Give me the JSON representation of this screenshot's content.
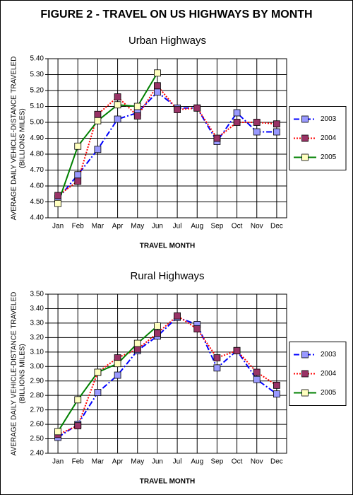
{
  "title": "FIGURE 2 - TRAVEL ON US HIGHWAYS BY MONTH",
  "chart_data": [
    {
      "type": "line",
      "title": "Urban Highways",
      "xlabel": "TRAVEL MONTH",
      "ylabel": [
        "AVERAGE DAILY VEHICLE-DISTANCE TRAVELED",
        "(BILLIONS MILES)"
      ],
      "categories": [
        "Jan",
        "Feb",
        "Mar",
        "Apr",
        "May",
        "Jun",
        "Jul",
        "Aug",
        "Sep",
        "Oct",
        "Nov",
        "Dec"
      ],
      "ylim": [
        4.4,
        5.4
      ],
      "yticks": [
        {
          "value": 4.4,
          "label": "4.40"
        },
        {
          "value": 4.5,
          "label": "4.50"
        },
        {
          "value": 4.6,
          "label": "4.60"
        },
        {
          "value": 4.7,
          "label": "4.70"
        },
        {
          "value": 4.8,
          "label": "4.80"
        },
        {
          "value": 4.9,
          "label": "4.90"
        },
        {
          "value": 5.0,
          "label": "5.00"
        },
        {
          "value": 5.1,
          "label": "5.10"
        },
        {
          "value": 5.2,
          "label": "5.20"
        },
        {
          "value": 5.3,
          "label": "5.30"
        },
        {
          "value": 5.4,
          "label": "5.40"
        }
      ],
      "grid": true,
      "legend": "right",
      "series": [
        {
          "name": "2003",
          "color": "#0000ff",
          "marker_color": "#9999ff",
          "line_style": "dashdot",
          "values": [
            4.52,
            4.67,
            4.83,
            5.02,
            5.06,
            5.19,
            5.09,
            5.09,
            4.88,
            5.06,
            4.94,
            4.94
          ]
        },
        {
          "name": "2004",
          "color": "#ff0000",
          "marker_color": "#993366",
          "line_style": "dotted",
          "values": [
            4.54,
            4.63,
            5.05,
            5.16,
            5.04,
            5.23,
            5.08,
            5.09,
            4.9,
            5.0,
            5.0,
            4.99
          ]
        },
        {
          "name": "2005",
          "color": "#008000",
          "marker_color": "#ffffc0",
          "line_style": "solid",
          "values": [
            4.49,
            4.85,
            5.01,
            5.11,
            5.1,
            5.31,
            null,
            null,
            null,
            null,
            null,
            null
          ]
        }
      ]
    },
    {
      "type": "line",
      "title": "Rural Highways",
      "xlabel": "TRAVEL MONTH",
      "ylabel": [
        "AVERAGE DAILY VEHICLE-DISTANCE TRAVELED",
        "(BILLIONS MILES)"
      ],
      "categories": [
        "Jan",
        "Feb",
        "Mar",
        "Apr",
        "May",
        "Jun",
        "Jul",
        "Aug",
        "Sep",
        "Oct",
        "Nov",
        "Dec"
      ],
      "ylim": [
        2.4,
        3.5
      ],
      "yticks": [
        {
          "value": 2.4,
          "label": "2.40"
        },
        {
          "value": 2.5,
          "label": "2.50"
        },
        {
          "value": 2.6,
          "label": "2.60"
        },
        {
          "value": 2.7,
          "label": "2.70"
        },
        {
          "value": 2.8,
          "label": "2.80"
        },
        {
          "value": 2.9,
          "label": "2.90"
        },
        {
          "value": 3.0,
          "label": "3.00"
        },
        {
          "value": 3.1,
          "label": "3.10"
        },
        {
          "value": 3.2,
          "label": "3.20"
        },
        {
          "value": 3.3,
          "label": "3.30"
        },
        {
          "value": 3.4,
          "label": "3.40"
        },
        {
          "value": 3.5,
          "label": "3.50"
        }
      ],
      "grid": true,
      "legend": "right",
      "series": [
        {
          "name": "2003",
          "color": "#0000ff",
          "marker_color": "#9999ff",
          "line_style": "dashdot",
          "values": [
            2.51,
            2.6,
            2.82,
            2.94,
            3.11,
            3.21,
            3.34,
            3.29,
            2.99,
            3.11,
            2.91,
            2.81
          ]
        },
        {
          "name": "2004",
          "color": "#ff0000",
          "marker_color": "#993366",
          "line_style": "dotted",
          "values": [
            2.53,
            2.59,
            2.96,
            3.06,
            3.12,
            3.23,
            3.35,
            3.26,
            3.06,
            3.11,
            2.96,
            2.87
          ]
        },
        {
          "name": "2005",
          "color": "#008000",
          "marker_color": "#ffffc0",
          "line_style": "solid",
          "values": [
            2.55,
            2.77,
            2.96,
            3.02,
            3.16,
            3.28,
            null,
            null,
            null,
            null,
            null,
            null
          ]
        }
      ]
    }
  ]
}
